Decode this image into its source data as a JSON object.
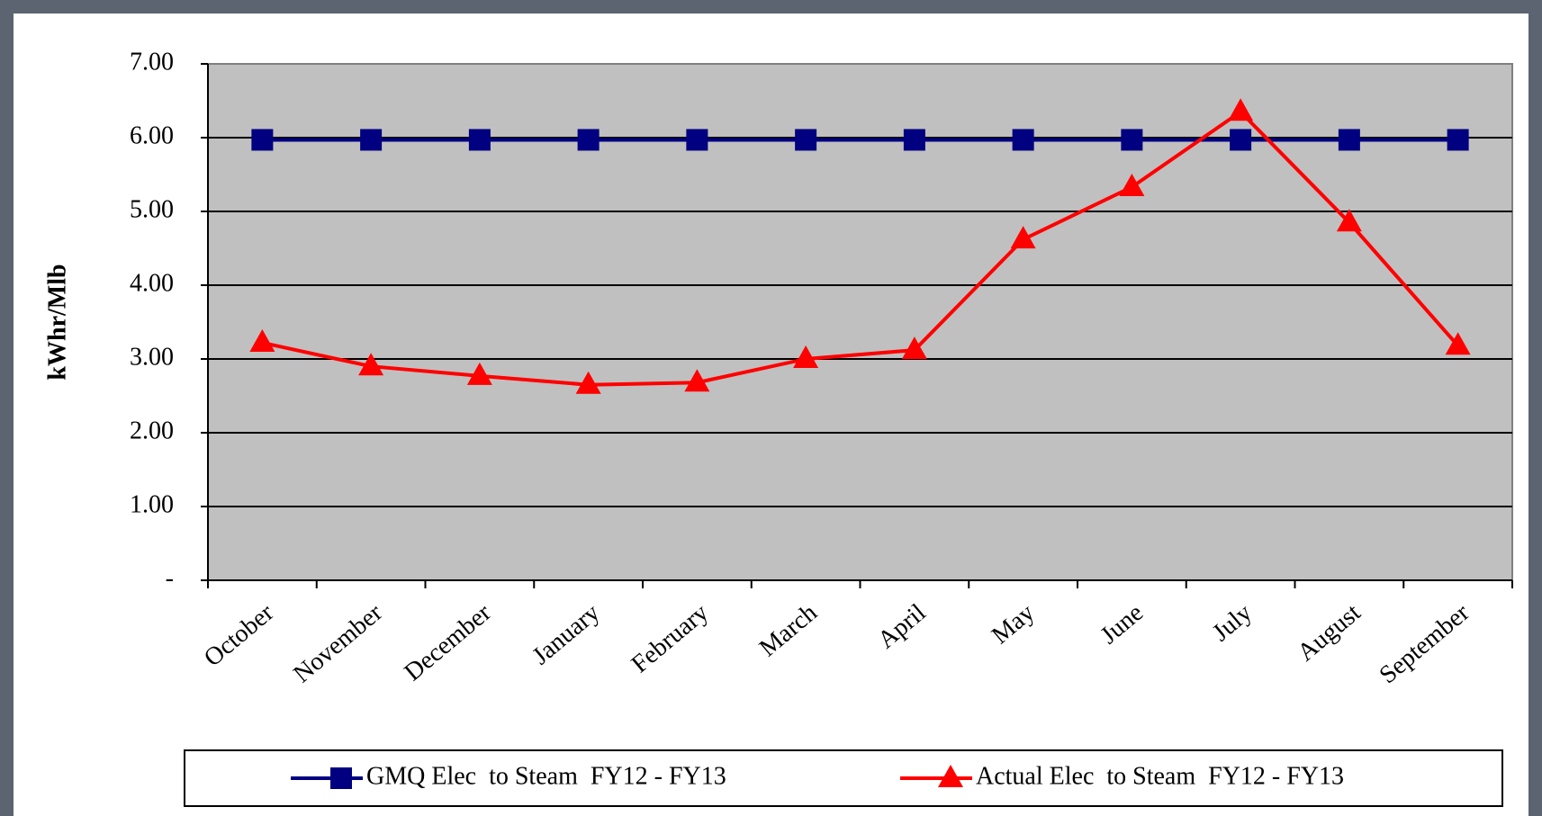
{
  "chart_data": {
    "type": "line",
    "y_label": "kWhr/Mlb",
    "categories": [
      "October",
      "November",
      "December",
      "January",
      "February",
      "March",
      "April",
      "May",
      "June",
      "July",
      "August",
      "September"
    ],
    "series": [
      {
        "name": "GMQ Elec  to Steam  FY12 - FY13",
        "color": "#000080",
        "marker": "square",
        "values": [
          5.97,
          5.97,
          5.97,
          5.97,
          5.97,
          5.97,
          5.97,
          5.97,
          5.97,
          5.97,
          5.97,
          5.97
        ]
      },
      {
        "name": "Actual Elec  to Steam  FY12 - FY13",
        "color": "#ff0000",
        "marker": "triangle",
        "values": [
          3.22,
          2.9,
          2.77,
          2.65,
          2.68,
          3.0,
          3.12,
          4.62,
          5.33,
          6.35,
          4.85,
          3.18
        ]
      }
    ],
    "ylim": [
      0,
      7
    ],
    "yticks": [
      {
        "value": 0,
        "label": "-"
      },
      {
        "value": 1,
        "label": "1.00"
      },
      {
        "value": 2,
        "label": "2.00"
      },
      {
        "value": 3,
        "label": "3.00"
      },
      {
        "value": 4,
        "label": "4.00"
      },
      {
        "value": 5,
        "label": "5.00"
      },
      {
        "value": 6,
        "label": "6.00"
      },
      {
        "value": 7,
        "label": "7.00"
      }
    ],
    "grid": true,
    "plot_background": "#c0c0c0",
    "legend": "bottom"
  }
}
